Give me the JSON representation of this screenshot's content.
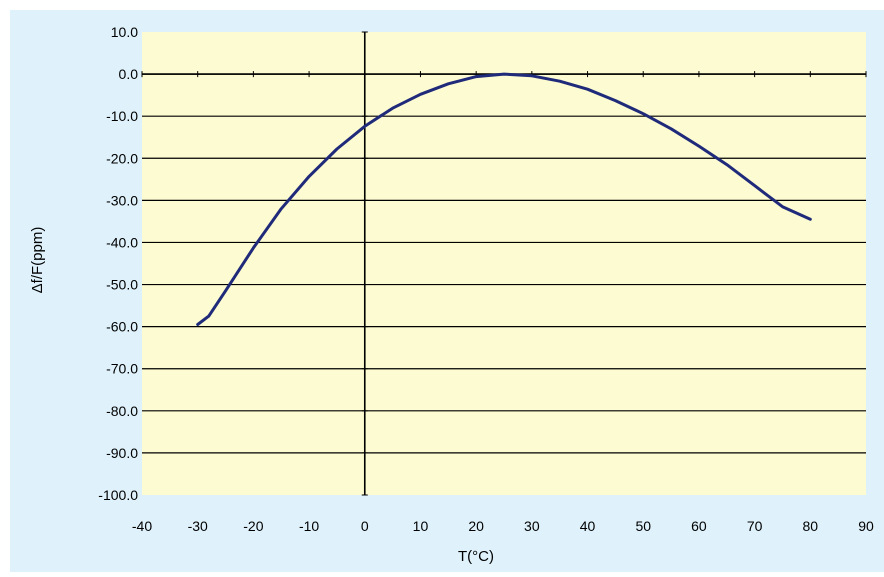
{
  "colors": {
    "outer_background": "#dff2fb",
    "plot_background": "#fdfbd1",
    "gridline": "#000000",
    "curve": "#1f2a7a"
  },
  "chart_data": {
    "type": "line",
    "title": "",
    "xlabel": "T(°C)",
    "ylabel": "Δf/F(ppm)",
    "xlim": [
      -40,
      90
    ],
    "ylim": [
      -100,
      10
    ],
    "x_ticks": [
      -40,
      -30,
      -20,
      -10,
      0,
      10,
      20,
      30,
      40,
      50,
      60,
      70,
      80,
      90
    ],
    "x_tick_labels": [
      "-40",
      "-30",
      "-20",
      "-10",
      "0",
      "10",
      "20",
      "30",
      "40",
      "50",
      "60",
      "70",
      "80",
      "90"
    ],
    "y_ticks": [
      10,
      0,
      -10,
      -20,
      -30,
      -40,
      -50,
      -60,
      -70,
      -80,
      -90,
      -100
    ],
    "y_tick_labels": [
      "10.0",
      "0.0",
      "-10.0",
      "-20.0",
      "-30.0",
      "-40.0",
      "-50.0",
      "-60.0",
      "-70.0",
      "-80.0",
      "-90.0",
      "-100.0"
    ],
    "grid": "horizontal",
    "legend": "none",
    "series": [
      {
        "x": [
          -30,
          -28,
          -25,
          -20,
          -15,
          -10,
          -5,
          0,
          5,
          10,
          15,
          20,
          25,
          30,
          35,
          40,
          45,
          50,
          55,
          60,
          65,
          70,
          75,
          80
        ],
        "y": [
          -59.5,
          -57.5,
          -51.5,
          -41.3,
          -32.0,
          -24.3,
          -17.8,
          -12.4,
          -8.1,
          -4.8,
          -2.3,
          -0.6,
          0.0,
          -0.4,
          -1.7,
          -3.6,
          -6.3,
          -9.4,
          -13.0,
          -17.1,
          -21.5,
          -26.5,
          -31.5,
          -34.5
        ]
      }
    ]
  }
}
